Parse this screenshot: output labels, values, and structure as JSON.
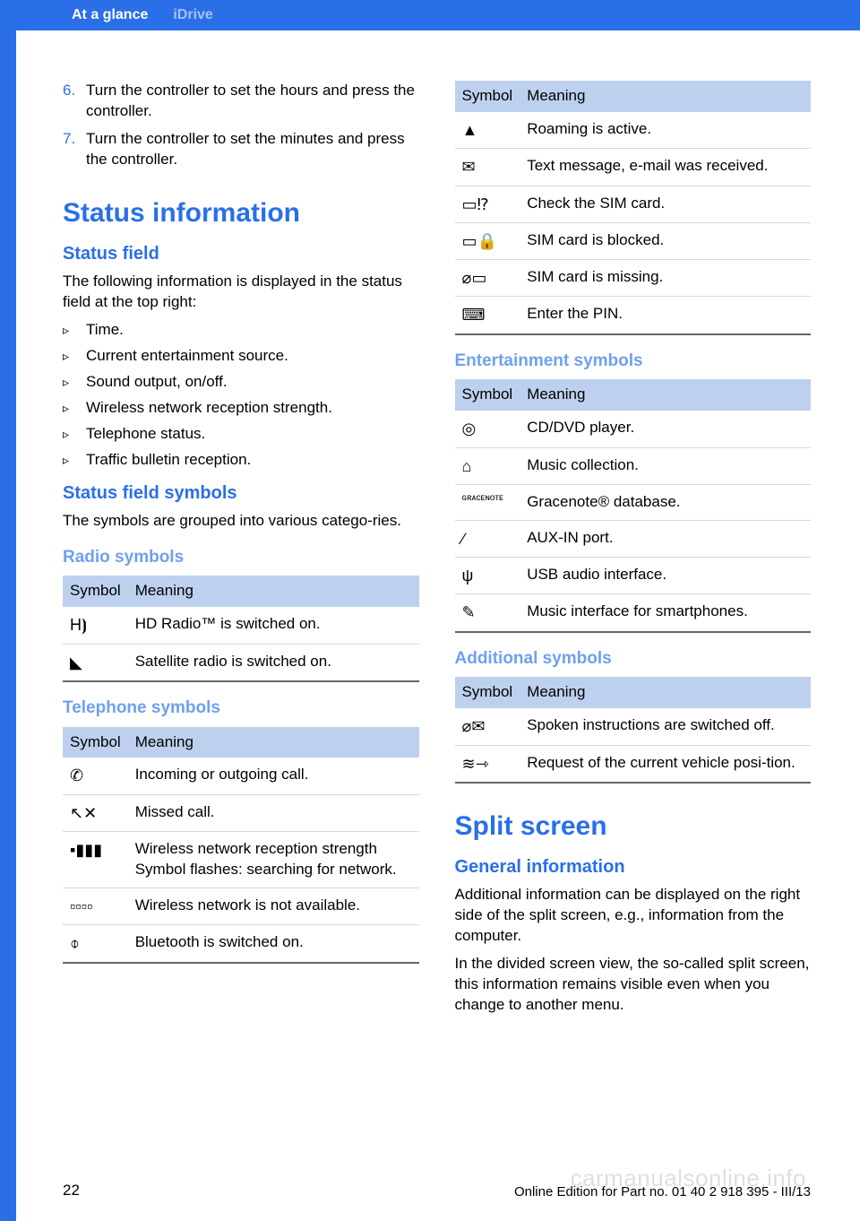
{
  "colors": {
    "accent": "#2a6fe8",
    "accent_light": "#6fa0f0",
    "table_header_bg": "#bdd0ee",
    "row_border": "#d8d8d8",
    "watermark": "rgba(0,0,0,0.13)"
  },
  "header": {
    "tab1": "At a glance",
    "tab2": "iDrive"
  },
  "numbered_steps": [
    {
      "n": "6.",
      "text": "Turn the controller to set the hours and press the controller."
    },
    {
      "n": "7.",
      "text": "Turn the controller to set the minutes and press the controller."
    }
  ],
  "status_info": {
    "h1": "Status information",
    "h2": "Status field",
    "intro": "The following information is displayed in the status field at the top right:",
    "bullets": [
      "Time.",
      "Current entertainment source.",
      "Sound output, on/off.",
      "Wireless network reception strength.",
      "Telephone status.",
      "Traffic bulletin reception."
    ],
    "h2b": "Status field symbols",
    "symbols_intro": "The symbols are grouped into various catego‐ries."
  },
  "table_headers": {
    "symbol": "Symbol",
    "meaning": "Meaning"
  },
  "radio": {
    "title": "Radio symbols",
    "rows": [
      {
        "sym": "H⦘",
        "text": "HD Radio™ is switched on."
      },
      {
        "sym": "◣",
        "text": "Satellite radio is switched on."
      }
    ]
  },
  "telephone": {
    "title": "Telephone symbols",
    "rows": [
      {
        "sym": "✆",
        "text": "Incoming or outgoing call."
      },
      {
        "sym": "↖✕",
        "text": "Missed call."
      },
      {
        "sym": "▪▮▮▮",
        "text": "Wireless network reception strength Symbol flashes: searching for network."
      },
      {
        "sym": "▫▫▫▫",
        "text": "Wireless network is not available."
      },
      {
        "sym": "⌽",
        "text": "Bluetooth is switched on."
      }
    ],
    "rows2": [
      {
        "sym": "▲",
        "text": "Roaming is active."
      },
      {
        "sym": "✉",
        "text": "Text message, e-mail was received."
      },
      {
        "sym": "▭⁉",
        "text": "Check the SIM card."
      },
      {
        "sym": "▭🔒",
        "text": "SIM card is blocked."
      },
      {
        "sym": "⌀▭",
        "text": "SIM card is missing."
      },
      {
        "sym": "⌨",
        "text": "Enter the PIN."
      }
    ]
  },
  "entertainment": {
    "title": "Entertainment symbols",
    "rows": [
      {
        "sym": "◎",
        "text": "CD/DVD player."
      },
      {
        "sym": "⌂",
        "text": "Music collection."
      },
      {
        "sym": "ɢʀᴀᴄᴇɴᴏᴛᴇ",
        "text": "Gracenote® database."
      },
      {
        "sym": "∕",
        "text": "AUX-IN port."
      },
      {
        "sym": "ψ",
        "text": "USB audio interface."
      },
      {
        "sym": "✎",
        "text": "Music interface for smartphones."
      }
    ]
  },
  "additional": {
    "title": "Additional symbols",
    "rows": [
      {
        "sym": "⌀✉",
        "text": "Spoken instructions are switched off."
      },
      {
        "sym": "≋⇾",
        "text": "Request of the current vehicle posi‐tion."
      }
    ]
  },
  "split": {
    "h1": "Split screen",
    "h2": "General information",
    "p1": "Additional information can be displayed on the right side of the split screen, e.g., information from the computer.",
    "p2": "In the divided screen view, the so-called split screen, this information remains visible even when you change to another menu."
  },
  "footer": {
    "page": "22",
    "edition": "Online Edition for Part no. 01 40 2 918 395 - III/13"
  },
  "watermark": "carmanualsonline.info"
}
